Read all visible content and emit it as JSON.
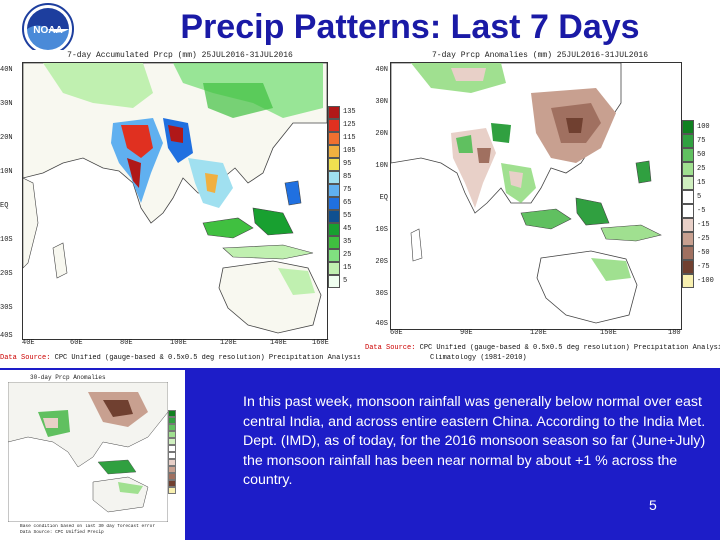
{
  "slide": {
    "title": "Precip Patterns: Last 7 Days",
    "page_number": "5",
    "logo_text": "NOAA",
    "body_text": "In this past week, monsoon rainfall was generally below normal over east central India, and across entire eastern China. According to the India Met. Dept. (IMD), as of today, for the 2016 monsoon season so far (June+July) the monsoon rainfall has been near normal by about +1 % across the country."
  },
  "left_map": {
    "caption": "7-day Accumulated Prcp (mm) 25JUL2016-31JUL2016",
    "source_prefix": "Data Source:",
    "source_text": "CPC Unified (gauge-based & 0.5x0.5 deg resolution) Precipitation Analysis",
    "lat_labels": [
      "40N",
      "30N",
      "20N",
      "10N",
      "EQ",
      "10S",
      "20S",
      "30S",
      "40S"
    ],
    "lon_labels": [
      "40E",
      "60E",
      "80E",
      "100E",
      "120E",
      "140E",
      "160E"
    ],
    "legend_values": [
      "135",
      "125",
      "115",
      "105",
      "95",
      "85",
      "75",
      "65",
      "55",
      "45",
      "35",
      "25",
      "15",
      "5"
    ],
    "legend_colors": [
      "#b01818",
      "#e03020",
      "#f07030",
      "#f0b040",
      "#f0e050",
      "#a0e0f0",
      "#60b0f0",
      "#2070e0",
      "#105090",
      "#18a030",
      "#40c040",
      "#80e080",
      "#c0f0b0",
      "#f0fff0"
    ]
  },
  "right_map": {
    "caption": "7-day Prcp Anomalies (mm) 25JUL2016-31JUL2016",
    "source_prefix": "Data Source:",
    "source_text": "CPC Unified (gauge-based & 0.5x0.5 deg resolution) Precipitation Analysis",
    "source_text2": "Climatology (1981-2010)",
    "lat_labels": [
      "40N",
      "30N",
      "20N",
      "10N",
      "EQ",
      "10S",
      "20S",
      "30S",
      "40S"
    ],
    "lon_labels": [
      "60E",
      "90E",
      "120E",
      "150E",
      "180"
    ],
    "legend_values": [
      "100",
      "75",
      "50",
      "25",
      "15",
      "5",
      "-5",
      "-15",
      "-25",
      "-50",
      "-75",
      "-100"
    ],
    "legend_colors": [
      "#108020",
      "#30a040",
      "#60c060",
      "#a0e090",
      "#d0f0c0",
      "#ffffff",
      "#ffffff",
      "#e8d0c8",
      "#c8a090",
      "#a07060",
      "#704030",
      "#f8f0b0"
    ]
  },
  "small_map": {
    "caption": "30-day Prcp Anomalies",
    "footer_line1": "Base condition based on last 30 day forecast error",
    "footer_line2": "Data Source: CPC Unified Precip"
  }
}
